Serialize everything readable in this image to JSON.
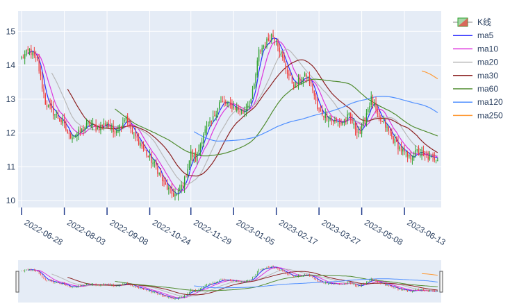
{
  "chart_data": {
    "type": "candlestick",
    "grid": true,
    "legend_placement": "right",
    "colors": {
      "plot_bg": "#e5ecf6",
      "grid": "#ffffff",
      "text": "#2a3f5f",
      "increasing": "#2ca02c",
      "decreasing": "#ef3b3b"
    },
    "ylim": [
      9.8,
      15.6
    ],
    "yticks": [
      10,
      11,
      12,
      13,
      14,
      15
    ],
    "xticks": [
      "2022-06-28",
      "2022-08-03",
      "2022-09-08",
      "2022-10-24",
      "2022-11-29",
      "2023-01-05",
      "2023-02-17",
      "2023-03-27",
      "2023-05-08",
      "2023-06-13"
    ],
    "trading_days": 240,
    "close_anchors": [
      [
        0,
        14.2
      ],
      [
        5,
        14.45
      ],
      [
        10,
        14.1
      ],
      [
        15,
        12.9
      ],
      [
        20,
        12.6
      ],
      [
        26,
        12.3
      ],
      [
        30,
        11.9
      ],
      [
        36,
        12.0
      ],
      [
        42,
        12.25
      ],
      [
        48,
        12.15
      ],
      [
        54,
        12.3
      ],
      [
        58,
        12.05
      ],
      [
        62,
        12.2
      ],
      [
        66,
        12.5
      ],
      [
        70,
        12.0
      ],
      [
        75,
        11.7
      ],
      [
        80,
        11.3
      ],
      [
        85,
        11.0
      ],
      [
        90,
        10.5
      ],
      [
        95,
        10.2
      ],
      [
        98,
        10.15
      ],
      [
        103,
        10.6
      ],
      [
        107,
        11.4
      ],
      [
        110,
        11.2
      ],
      [
        115,
        12.0
      ],
      [
        120,
        12.3
      ],
      [
        125,
        12.9
      ],
      [
        130,
        12.85
      ],
      [
        135,
        12.75
      ],
      [
        140,
        12.6
      ],
      [
        145,
        13.0
      ],
      [
        147,
        13.4
      ],
      [
        150,
        14.4
      ],
      [
        155,
        14.7
      ],
      [
        158,
        14.9
      ],
      [
        161,
        14.8
      ],
      [
        164,
        14.3
      ],
      [
        168,
        13.8
      ],
      [
        172,
        13.4
      ],
      [
        175,
        13.5
      ],
      [
        180,
        13.7
      ],
      [
        184,
        13.3
      ],
      [
        187,
        12.7
      ],
      [
        192,
        12.5
      ],
      [
        197,
        12.35
      ],
      [
        202,
        12.3
      ],
      [
        207,
        12.5
      ],
      [
        210,
        12.2
      ],
      [
        214,
        12.0
      ],
      [
        218,
        12.6
      ],
      [
        221,
        13.0
      ],
      [
        226,
        12.4
      ],
      [
        230,
        12.2
      ],
      [
        235,
        11.8
      ],
      [
        240,
        11.5
      ],
      [
        245,
        11.25
      ],
      [
        250,
        11.45
      ],
      [
        255,
        11.3
      ],
      [
        260,
        11.25
      ],
      [
        263,
        11.3
      ]
    ],
    "series": [
      {
        "name": "K线",
        "type": "candlestick"
      },
      {
        "name": "ma5",
        "color": "#2c2cff",
        "window": 5
      },
      {
        "name": "ma10",
        "color": "#dd33dd",
        "window": 10
      },
      {
        "name": "ma20",
        "color": "#b8b8b8",
        "window": 20
      },
      {
        "name": "ma30",
        "color": "#8b2020",
        "window": 30
      },
      {
        "name": "ma60",
        "color": "#4f8b2e",
        "window": 60
      },
      {
        "name": "ma120",
        "color": "#4f8fff",
        "window": 120
      },
      {
        "name": "ma250",
        "color": "#ff9933",
        "window": 250
      }
    ]
  }
}
